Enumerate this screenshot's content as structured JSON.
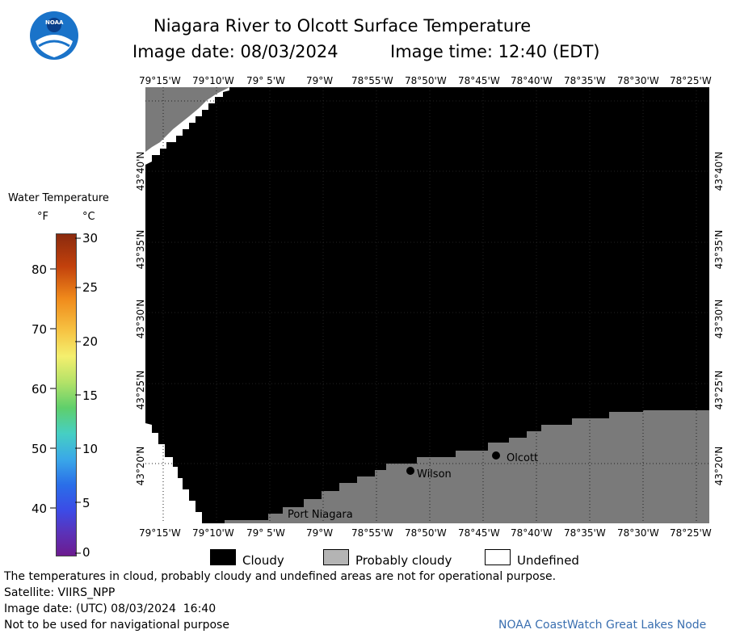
{
  "header": {
    "title": "Niagara River to Olcott Surface Temperature",
    "image_date": "Image date: 08/03/2024",
    "image_time": "Image time: 12:40 (EDT)",
    "logo_text": "NOAA"
  },
  "map": {
    "lon_ticks": [
      "79°15'W",
      "79°10'W",
      "79° 5'W",
      "79°W",
      "78°55'W",
      "78°50'W",
      "78°45'W",
      "78°40'W",
      "78°35'W",
      "78°30'W",
      "78°25'W"
    ],
    "lat_ticks": [
      "43°40'N",
      "43°35'N",
      "43°30'N",
      "43°25'N",
      "43°20'N"
    ],
    "places": {
      "wilson": "Wilson",
      "olcott": "Olcott",
      "port_niagara": "Port Niagara"
    }
  },
  "color_scale": {
    "title": "Water Temperature",
    "unit_f": "°F",
    "unit_c": "°C",
    "f_ticks": [
      "80",
      "70",
      "60",
      "50",
      "40"
    ],
    "c_ticks": [
      "30",
      "25",
      "20",
      "15",
      "10",
      "5",
      "0"
    ]
  },
  "legend": {
    "cloudy": "Cloudy",
    "probably_cloudy": "Probably cloudy",
    "undefined": "Undefined",
    "colors": {
      "cloudy": "#000000",
      "probably_cloudy": "#b4b4b4",
      "undefined": "#ffffff",
      "land": "#7a7a7a"
    }
  },
  "footer": {
    "disclaimer": "The temperatures in cloud, probably cloudy and undefined areas are not for operational purpose.",
    "satellite": "Satellite: VIIRS_NPP",
    "utc_date": "Image date: (UTC) 08/03/2024  16:40",
    "nav_warning": "Not to be used for navigational purpose",
    "credit": "NOAA CoastWatch Great Lakes Node",
    "credit_color": "#3a6fb0"
  }
}
